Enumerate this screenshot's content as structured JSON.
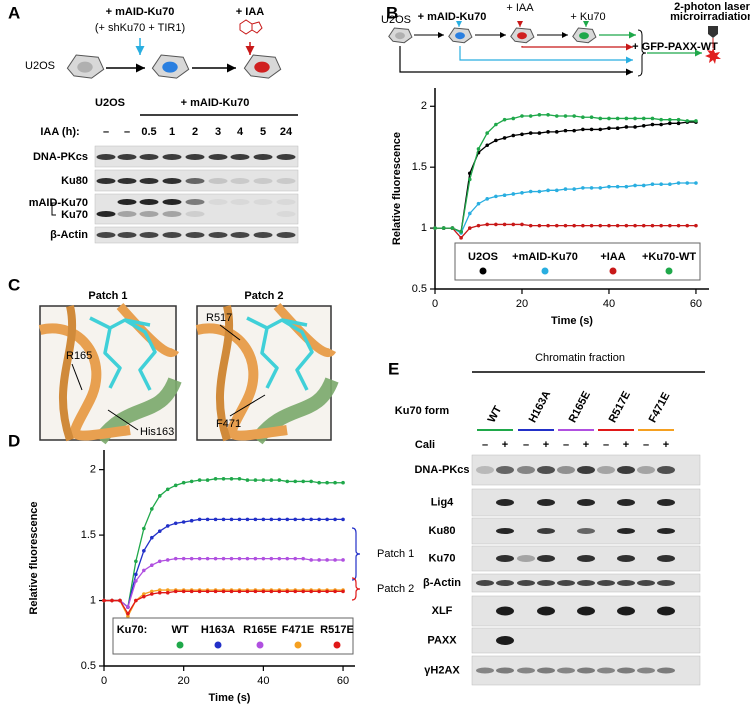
{
  "panel_a": {
    "label": "A",
    "schematic": {
      "start": "U2OS",
      "step1": "+ mAID-Ku70",
      "step1_note": "(+ shKu70 + TIR1)",
      "step2": "+ IAA"
    },
    "blot": {
      "group1": "U2OS",
      "group2": "+ mAID-Ku70",
      "treatment": "IAA (h):",
      "lanes": [
        "–",
        "–",
        "0.5",
        "1",
        "2",
        "3",
        "4",
        "5",
        "24"
      ],
      "rows": [
        "DNA-PKcs",
        "Ku80",
        "mAID-Ku70",
        "Ku70",
        "β-Actin"
      ]
    }
  },
  "panel_b": {
    "label": "B",
    "schematic": {
      "start": "U2OS",
      "step1": "+ mAID-Ku70",
      "step2": "+ IAA",
      "step3": "+ Ku70",
      "laser": [
        "2-photon laser",
        "microirradiation"
      ],
      "transfect": "+ GFP-PAXX-WT"
    }
  },
  "panel_c": {
    "label": "C",
    "patches": [
      {
        "title": "Patch 1",
        "residues": [
          "R165",
          "His163"
        ]
      },
      {
        "title": "Patch 2",
        "residues": [
          "R517",
          "F471"
        ]
      }
    ]
  },
  "panel_d": {
    "label": "D"
  },
  "panel_e": {
    "label": "E",
    "header": "Chromatin fraction",
    "form_label": "Ku70 form",
    "forms": [
      {
        "name": "WT",
        "color": "#1fa84a"
      },
      {
        "name": "H163A",
        "color": "#2230c8"
      },
      {
        "name": "R165E",
        "color": "#b050e0"
      },
      {
        "name": "R517E",
        "color": "#e01818"
      },
      {
        "name": "F471E",
        "color": "#f5a020"
      }
    ],
    "cali_label": "Cali",
    "cali": [
      "–",
      "+",
      "–",
      "+",
      "–",
      "+",
      "–",
      "+",
      "–",
      "+"
    ],
    "rows": [
      "DNA-PKcs",
      "Lig4",
      "Ku80",
      "Ku70",
      "β-Actin",
      "XLF",
      "PAXX",
      "γH2AX"
    ]
  },
  "chart_data": [
    {
      "type": "line",
      "y_label": "Relative fluorescence",
      "x_label": "Time (s)",
      "x": [
        0,
        2,
        4,
        6,
        8,
        10,
        12,
        14,
        16,
        18,
        20,
        22,
        24,
        26,
        28,
        30,
        32,
        34,
        36,
        38,
        40,
        42,
        44,
        46,
        48,
        50,
        52,
        54,
        56,
        58,
        60
      ],
      "xlim": [
        0,
        63
      ],
      "ylim": [
        0.5,
        2.15
      ],
      "xticks": [
        0,
        20,
        40,
        60
      ],
      "yticks": [
        0.5,
        1,
        1.5,
        2
      ],
      "series": [
        {
          "name": "U2OS",
          "color": "#000000",
          "values": [
            1,
            1,
            1,
            0.97,
            1.45,
            1.62,
            1.68,
            1.72,
            1.74,
            1.76,
            1.77,
            1.78,
            1.78,
            1.79,
            1.79,
            1.8,
            1.8,
            1.81,
            1.81,
            1.81,
            1.82,
            1.82,
            1.83,
            1.83,
            1.84,
            1.85,
            1.85,
            1.86,
            1.86,
            1.87,
            1.87
          ]
        },
        {
          "name": "+mAID-Ku70",
          "color": "#29aee0",
          "values": [
            1,
            1,
            1,
            0.96,
            1.12,
            1.2,
            1.24,
            1.26,
            1.27,
            1.28,
            1.29,
            1.3,
            1.3,
            1.31,
            1.31,
            1.32,
            1.32,
            1.33,
            1.33,
            1.33,
            1.34,
            1.34,
            1.34,
            1.35,
            1.35,
            1.36,
            1.36,
            1.36,
            1.37,
            1.37,
            1.37
          ]
        },
        {
          "name": "+IAA",
          "color": "#c81818",
          "values": [
            1,
            1,
            1,
            0.92,
            1.0,
            1.02,
            1.03,
            1.03,
            1.03,
            1.03,
            1.03,
            1.02,
            1.02,
            1.02,
            1.02,
            1.02,
            1.02,
            1.02,
            1.02,
            1.02,
            1.02,
            1.02,
            1.02,
            1.02,
            1.02,
            1.02,
            1.02,
            1.02,
            1.02,
            1.02,
            1.02
          ]
        },
        {
          "name": "+Ku70-WT",
          "color": "#1fa84a",
          "values": [
            1,
            1,
            1,
            0.97,
            1.4,
            1.65,
            1.78,
            1.85,
            1.89,
            1.9,
            1.92,
            1.92,
            1.93,
            1.93,
            1.92,
            1.92,
            1.92,
            1.91,
            1.91,
            1.9,
            1.9,
            1.9,
            1.9,
            1.9,
            1.9,
            1.9,
            1.89,
            1.89,
            1.89,
            1.88,
            1.88
          ]
        }
      ]
    },
    {
      "type": "line",
      "y_label": "Relative fluorescence",
      "x_label": "Time (s)",
      "legend_title": "Ku70:",
      "x": [
        0,
        2,
        4,
        6,
        8,
        10,
        12,
        14,
        16,
        18,
        20,
        22,
        24,
        26,
        28,
        30,
        32,
        34,
        36,
        38,
        40,
        42,
        44,
        46,
        48,
        50,
        52,
        54,
        56,
        58,
        60
      ],
      "xlim": [
        0,
        63
      ],
      "ylim": [
        0.5,
        2.15
      ],
      "xticks": [
        0,
        20,
        40,
        60
      ],
      "yticks": [
        0.5,
        1,
        1.5,
        2
      ],
      "series": [
        {
          "name": "WT",
          "color": "#1fa84a",
          "values": [
            1,
            1,
            1,
            0.95,
            1.3,
            1.55,
            1.7,
            1.8,
            1.85,
            1.88,
            1.9,
            1.91,
            1.92,
            1.92,
            1.93,
            1.93,
            1.93,
            1.93,
            1.92,
            1.92,
            1.92,
            1.92,
            1.92,
            1.91,
            1.91,
            1.91,
            1.91,
            1.9,
            1.9,
            1.9,
            1.9
          ]
        },
        {
          "name": "H163A",
          "color": "#2230c8",
          "values": [
            1,
            1,
            1,
            0.95,
            1.2,
            1.38,
            1.48,
            1.53,
            1.57,
            1.59,
            1.6,
            1.61,
            1.62,
            1.62,
            1.62,
            1.62,
            1.62,
            1.62,
            1.62,
            1.62,
            1.62,
            1.62,
            1.62,
            1.62,
            1.62,
            1.62,
            1.62,
            1.62,
            1.62,
            1.62,
            1.62
          ]
        },
        {
          "name": "R165E",
          "color": "#b050e0",
          "values": [
            1,
            1,
            1,
            0.95,
            1.15,
            1.23,
            1.27,
            1.3,
            1.31,
            1.32,
            1.32,
            1.32,
            1.32,
            1.32,
            1.32,
            1.32,
            1.32,
            1.32,
            1.32,
            1.32,
            1.32,
            1.32,
            1.32,
            1.32,
            1.32,
            1.32,
            1.31,
            1.31,
            1.31,
            1.31,
            1.31
          ]
        },
        {
          "name": "F471E",
          "color": "#f5a020",
          "values": [
            1,
            1,
            1,
            0.88,
            1.0,
            1.05,
            1.07,
            1.08,
            1.08,
            1.08,
            1.08,
            1.08,
            1.08,
            1.08,
            1.08,
            1.08,
            1.08,
            1.08,
            1.08,
            1.08,
            1.08,
            1.08,
            1.08,
            1.08,
            1.08,
            1.08,
            1.08,
            1.08,
            1.08,
            1.08,
            1.08
          ]
        },
        {
          "name": "R517E",
          "color": "#e01818",
          "values": [
            1,
            1,
            1,
            0.9,
            1.0,
            1.03,
            1.05,
            1.06,
            1.06,
            1.07,
            1.07,
            1.07,
            1.07,
            1.07,
            1.07,
            1.07,
            1.07,
            1.07,
            1.07,
            1.07,
            1.07,
            1.07,
            1.07,
            1.07,
            1.07,
            1.07,
            1.07,
            1.07,
            1.07,
            1.07,
            1.07
          ]
        }
      ],
      "annotations": [
        {
          "text": "Patch 1",
          "color": "#2230c8"
        },
        {
          "text": "Patch 2",
          "color": "#e01818"
        }
      ]
    }
  ]
}
